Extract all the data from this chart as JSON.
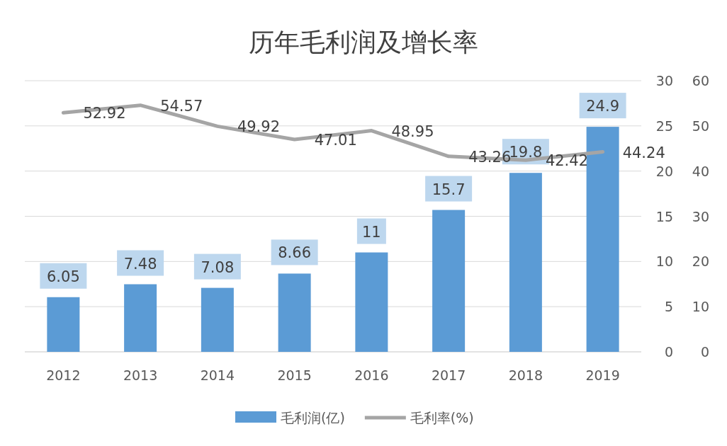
{
  "chart_data": {
    "type": "bar",
    "title": "历年毛利润及增长率",
    "categories": [
      "2012",
      "2013",
      "2014",
      "2015",
      "2016",
      "2017",
      "2018",
      "2019"
    ],
    "series": [
      {
        "name": "毛利润(亿)",
        "color": "#5b9bd5",
        "values": [
          6.05,
          7.48,
          7.08,
          8.66,
          11,
          15.7,
          19.8,
          24.9
        ]
      },
      {
        "name": "毛利率(%)",
        "type": "line",
        "axis": "y2",
        "color": "#a5a5a5",
        "values": [
          52.92,
          54.57,
          49.92,
          47.01,
          48.95,
          43.26,
          42.42,
          44.24
        ]
      }
    ],
    "ylim": [
      0,
      30
    ],
    "yticks": [
      0,
      5,
      10,
      15,
      20,
      25,
      30
    ],
    "y2lim": [
      0,
      60
    ],
    "y2ticks": [
      0,
      10,
      20,
      30,
      40,
      50,
      60
    ],
    "grid": "y",
    "legend": "bottom",
    "data_labels": true
  }
}
